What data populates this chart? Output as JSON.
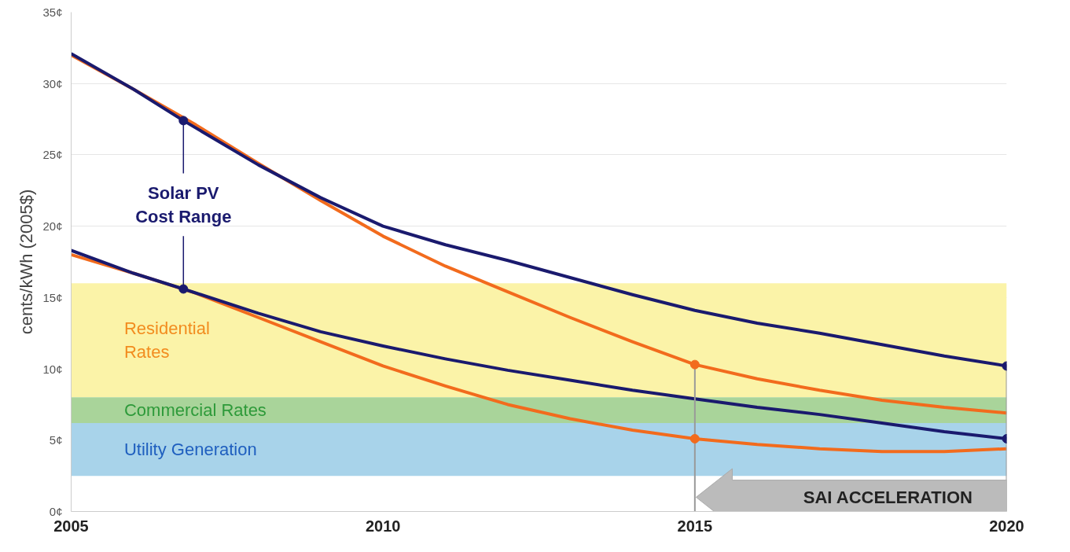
{
  "chart_data": {
    "type": "line",
    "ylabel": "cents/kWh (2005$)",
    "xlim": [
      2005,
      2020
    ],
    "ylim": [
      0,
      35
    ],
    "xticks": [
      2005,
      2010,
      2015,
      2020
    ],
    "yticks": [
      {
        "value": 0,
        "label": "0¢"
      },
      {
        "value": 5,
        "label": "5¢"
      },
      {
        "value": 10,
        "label": "10¢"
      },
      {
        "value": 15,
        "label": "15¢"
      },
      {
        "value": 20,
        "label": "20¢"
      },
      {
        "value": 25,
        "label": "25¢"
      },
      {
        "value": 30,
        "label": "30¢"
      },
      {
        "value": 35,
        "label": "35¢"
      }
    ],
    "grid": "y",
    "marker": "none",
    "line_style": "solid",
    "series": [
      {
        "color": "#f26b1d",
        "x": [
          2005,
          2006,
          2007,
          2008,
          2009,
          2010,
          2011,
          2012,
          2013,
          2014,
          2015,
          2016,
          2017,
          2018,
          2019,
          2020
        ],
        "values": [
          32.0,
          29.6,
          27.1,
          24.4,
          21.8,
          19.3,
          17.2,
          15.4,
          13.6,
          11.9,
          10.3,
          9.3,
          8.5,
          7.8,
          7.3,
          6.9
        ]
      },
      {
        "color": "#f26b1d",
        "x": [
          2005,
          2006,
          2007,
          2008,
          2009,
          2010,
          2011,
          2012,
          2013,
          2014,
          2015,
          2016,
          2017,
          2018,
          2019,
          2020
        ],
        "values": [
          18.0,
          16.7,
          15.3,
          13.6,
          11.9,
          10.2,
          8.8,
          7.5,
          6.5,
          5.7,
          5.1,
          4.7,
          4.4,
          4.2,
          4.2,
          4.4
        ]
      },
      {
        "color": "#1a1a6e",
        "x": [
          2005,
          2006,
          2006.8,
          2008,
          2009,
          2010,
          2011,
          2012,
          2013,
          2014,
          2015,
          2016,
          2017,
          2018,
          2019,
          2020
        ],
        "values": [
          32.1,
          29.6,
          27.4,
          24.3,
          22.0,
          20.0,
          18.7,
          17.6,
          16.4,
          15.2,
          14.1,
          13.2,
          12.5,
          11.7,
          10.9,
          10.2
        ]
      },
      {
        "color": "#1a1a6e",
        "x": [
          2005,
          2006,
          2006.8,
          2008,
          2009,
          2010,
          2011,
          2012,
          2013,
          2014,
          2015,
          2016,
          2017,
          2018,
          2019,
          2020
        ],
        "values": [
          18.3,
          16.7,
          15.6,
          13.9,
          12.6,
          11.6,
          10.7,
          9.9,
          9.2,
          8.5,
          7.9,
          7.3,
          6.8,
          6.2,
          5.6,
          5.1
        ]
      },
      {
        "type": "scatter",
        "marker": "circle",
        "color": "#f26b1d",
        "x": [
          2015,
          2015
        ],
        "values": [
          10.3,
          5.1
        ]
      },
      {
        "type": "scatter",
        "marker": "circle",
        "color": "#1a1a6e",
        "x": [
          2020,
          2020,
          2006.8,
          2006.8
        ],
        "values": [
          10.2,
          5.1,
          27.4,
          15.6
        ]
      }
    ],
    "bands": [
      {
        "axis": "y",
        "from": 8,
        "to": 16,
        "label": "Residential Rates",
        "color": "#fbf3a8"
      },
      {
        "axis": "y",
        "from": 6.2,
        "to": 8,
        "label": "Commercial Rates",
        "color": "#a9d49a"
      },
      {
        "axis": "y",
        "from": 2.5,
        "to": 6.2,
        "label": "Utility Generation",
        "color": "#a8d3ea"
      }
    ],
    "ref_lines": [
      {
        "axis": "x",
        "value": 2015,
        "color": "#999999"
      },
      {
        "axis": "x",
        "value": 2020,
        "color": "#999999"
      }
    ],
    "annotations": [
      {
        "text": "Solar PV Cost Range",
        "x": 2006.8,
        "y": 27.4
      },
      "SAI ACCELERATION"
    ]
  }
}
